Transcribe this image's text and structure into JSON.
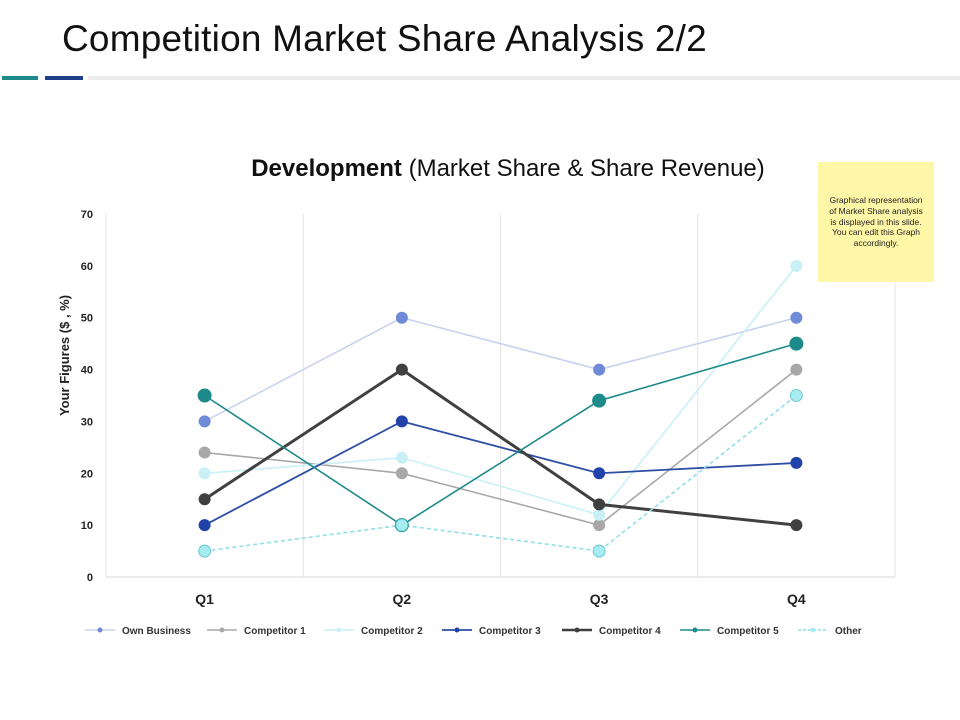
{
  "page": {
    "title": "Competition Market Share Analysis 2/2"
  },
  "note": {
    "text": "Graphical representation of Market Share analysis is displayed in this slide. You can edit this Graph accordingly."
  },
  "colors": {
    "accent_teal": "#1e8a8a",
    "accent_blue": "#1f3f8a",
    "note_bg": "#fff7a8"
  },
  "chart_data": {
    "type": "line",
    "title_bold": "Development",
    "title_rest": "(Market Share & Share Revenue)",
    "xlabel": "",
    "ylabel": "Your Figures ($ , %)",
    "ylim": [
      0,
      70
    ],
    "yticks": [
      0,
      10,
      20,
      30,
      40,
      50,
      60,
      70
    ],
    "categories": [
      "Q1",
      "Q2",
      "Q3",
      "Q4"
    ],
    "grid": "vertical",
    "legend_position": "bottom",
    "series": [
      {
        "name": "Own Business",
        "values": [
          30,
          50,
          40,
          50
        ],
        "line_color": "#c9d3ee",
        "marker_color": "#6f8bd8",
        "dash": false,
        "line_width": 1.6,
        "marker_size": 6
      },
      {
        "name": "Competitor 1",
        "values": [
          24,
          20,
          10,
          40
        ],
        "line_color": "#a8a8a8",
        "marker_color": "#a8a8a8",
        "dash": false,
        "line_width": 1.6,
        "marker_size": 6
      },
      {
        "name": "Competitor 2",
        "values": [
          20,
          23,
          12,
          60
        ],
        "line_color": "#c8f0f6",
        "marker_color": "#c8f0f6",
        "dash": false,
        "line_width": 1.6,
        "marker_size": 6
      },
      {
        "name": "Competitor 3",
        "values": [
          10,
          30,
          20,
          22
        ],
        "line_color": "#2e4fa5",
        "marker_color": "#2142a8",
        "dash": false,
        "line_width": 1.8,
        "marker_size": 6
      },
      {
        "name": "Competitor 4",
        "values": [
          15,
          40,
          14,
          10
        ],
        "line_color": "#404040",
        "marker_color": "#404040",
        "dash": false,
        "line_width": 3,
        "marker_size": 6
      },
      {
        "name": "Competitor 5",
        "values": [
          35,
          10,
          34,
          45
        ],
        "line_color": "#1e8a8a",
        "marker_color": "#1e8a8a",
        "dash": false,
        "line_width": 1.6,
        "marker_size": 7
      },
      {
        "name": "Other",
        "values": [
          5,
          10,
          5,
          35
        ],
        "line_color": "#8ee0e8",
        "marker_color": "#a6ecf1",
        "dash": true,
        "line_width": 1.6,
        "marker_size": 6
      }
    ]
  }
}
